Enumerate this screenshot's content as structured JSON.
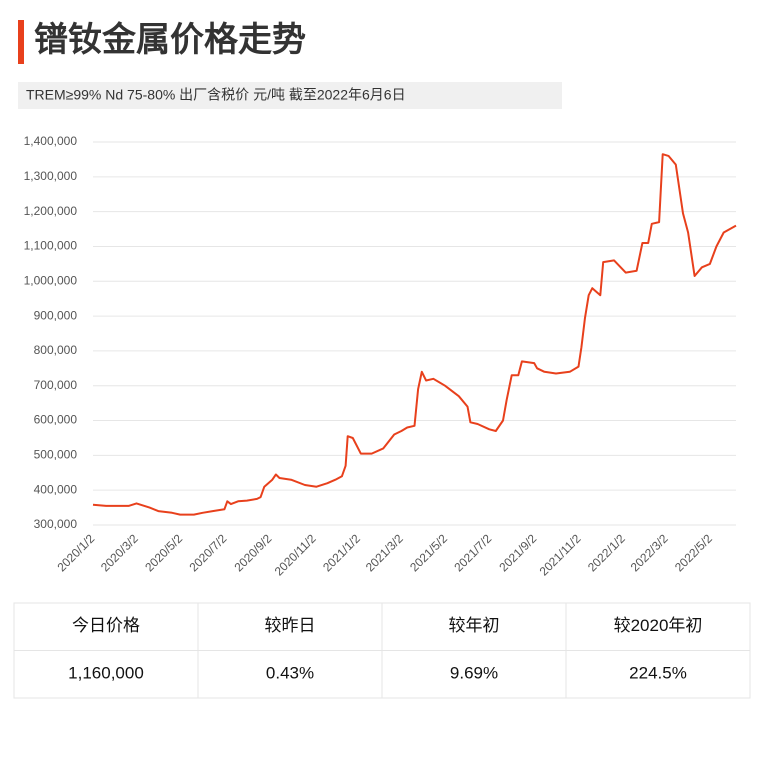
{
  "header": {
    "title": "镨钕金属价格走势",
    "subtitle": "TREM≥99% Nd 75-80%  出厂含税价 元/吨  截至2022年6月6日"
  },
  "chart_data": {
    "type": "line",
    "color": "#e8401c",
    "grid": true,
    "x": [
      "2020/1/2",
      "2020/1/20",
      "2020/2/20",
      "2020/3/2",
      "2020/3/20",
      "2020/4/1",
      "2020/4/20",
      "2020/5/1",
      "2020/5/20",
      "2020/6/1",
      "2020/6/15",
      "2020/7/1",
      "2020/7/5",
      "2020/7/10",
      "2020/7/20",
      "2020/8/1",
      "2020/8/15",
      "2020/8/20",
      "2020/8/25",
      "2020/9/5",
      "2020/9/10",
      "2020/9/15",
      "2020/10/1",
      "2020/10/20",
      "2020/11/5",
      "2020/11/20",
      "2020/12/1",
      "2020/12/10",
      "2020/12/15",
      "2020/12/18",
      "2020/12/25",
      "2021/1/5",
      "2021/1/20",
      "2021/2/5",
      "2021/2/20",
      "2021/3/2",
      "2021/3/10",
      "2021/3/20",
      "2021/3/25",
      "2021/3/30",
      "2021/4/5",
      "2021/4/15",
      "2021/5/1",
      "2021/5/20",
      "2021/6/1",
      "2021/6/5",
      "2021/6/15",
      "2021/7/1",
      "2021/7/10",
      "2021/7/20",
      "2021/7/25",
      "2021/8/1",
      "2021/8/10",
      "2021/8/15",
      "2021/9/1",
      "2021/9/5",
      "2021/9/15",
      "2021/10/1",
      "2021/10/20",
      "2021/11/1",
      "2021/11/5",
      "2021/11/10",
      "2021/11/15",
      "2021/11/20",
      "2021/12/1",
      "2021/12/5",
      "2021/12/20",
      "2022/1/5",
      "2022/1/20",
      "2022/1/28",
      "2022/2/5",
      "2022/2/10",
      "2022/2/20",
      "2022/2/25",
      "2022/3/5",
      "2022/3/15",
      "2022/3/25",
      "2022/4/1",
      "2022/4/10",
      "2022/4/20",
      "2022/5/1",
      "2022/5/10",
      "2022/5/20",
      "2022/6/6"
    ],
    "values": [
      358000,
      355000,
      355000,
      362000,
      350000,
      340000,
      335000,
      330000,
      330000,
      335000,
      340000,
      345000,
      368000,
      360000,
      368000,
      370000,
      375000,
      380000,
      410000,
      430000,
      445000,
      435000,
      430000,
      415000,
      410000,
      420000,
      430000,
      440000,
      470000,
      555000,
      550000,
      505000,
      505000,
      520000,
      560000,
      570000,
      580000,
      585000,
      690000,
      740000,
      715000,
      720000,
      700000,
      670000,
      640000,
      595000,
      590000,
      575000,
      570000,
      600000,
      660000,
      730000,
      730000,
      770000,
      765000,
      750000,
      740000,
      735000,
      740000,
      755000,
      810000,
      895000,
      960000,
      980000,
      960000,
      1055000,
      1060000,
      1025000,
      1030000,
      1110000,
      1110000,
      1165000,
      1170000,
      1365000,
      1360000,
      1335000,
      1195000,
      1140000,
      1015000,
      1040000,
      1050000,
      1100000,
      1140000,
      1160000
    ],
    "xlim": [
      "2020/1/2",
      "2022/6/6"
    ],
    "xticks": [
      "2020/1/2",
      "2020/3/2",
      "2020/5/2",
      "2020/7/2",
      "2020/9/2",
      "2020/11/2",
      "2021/1/2",
      "2021/3/2",
      "2021/5/2",
      "2021/7/2",
      "2021/9/2",
      "2021/11/2",
      "2022/1/2",
      "2022/3/2",
      "2022/5/2"
    ],
    "ylim": [
      300000,
      1400000
    ],
    "yticks": [
      {
        "value": 300000,
        "label": "300,000"
      },
      {
        "value": 400000,
        "label": "400,000"
      },
      {
        "value": 500000,
        "label": "500,000"
      },
      {
        "value": 600000,
        "label": "600,000"
      },
      {
        "value": 700000,
        "label": "700,000"
      },
      {
        "value": 800000,
        "label": "800,000"
      },
      {
        "value": 900000,
        "label": "900,000"
      },
      {
        "value": 1000000,
        "label": "1,000,000"
      },
      {
        "value": 1100000,
        "label": "1,100,000"
      },
      {
        "value": 1200000,
        "label": "1,200,000"
      },
      {
        "value": 1300000,
        "label": "1,300,000"
      },
      {
        "value": 1400000,
        "label": "1,400,000"
      }
    ]
  },
  "table": {
    "header": [
      "今日价格",
      "较昨日",
      "较年初",
      "较2020年初"
    ],
    "rows": [
      [
        "1,160,000",
        "0.43%",
        "9.69%",
        "224.5%"
      ]
    ]
  }
}
